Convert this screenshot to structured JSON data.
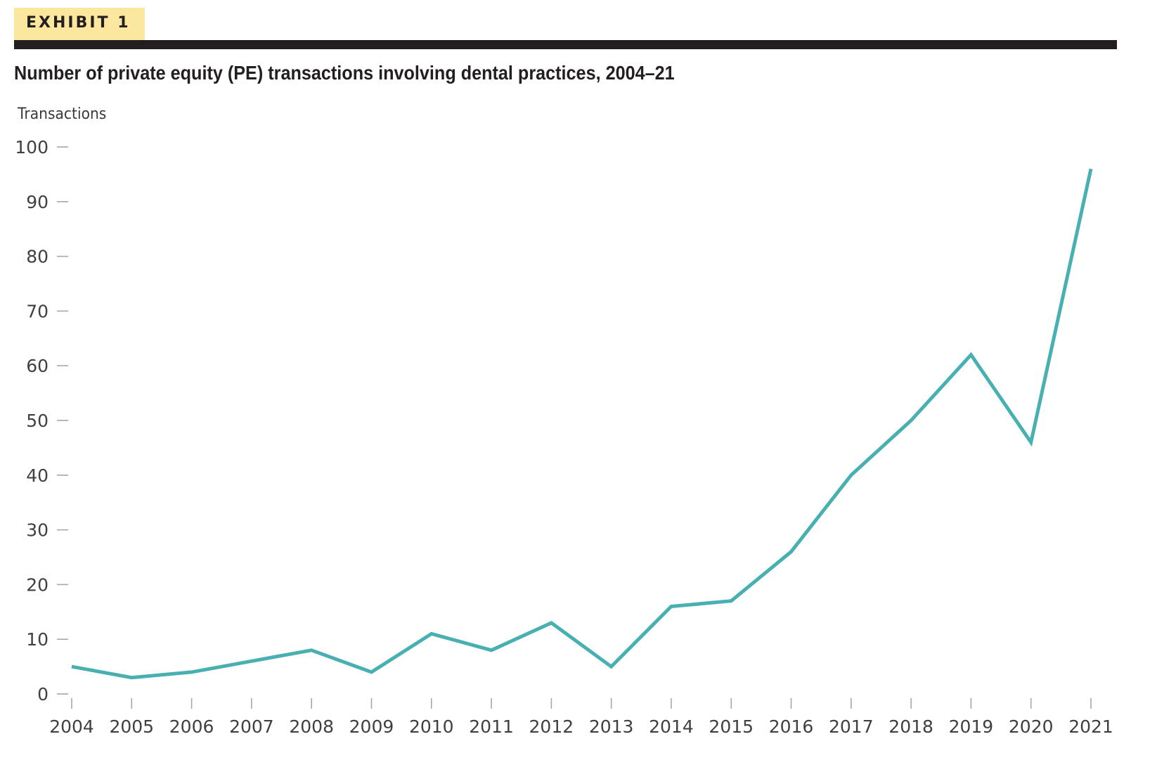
{
  "header": {
    "exhibit_label": "EXHIBIT 1"
  },
  "chart_data": {
    "type": "line",
    "title": "Number of private equity (PE) transactions involving dental practices, 2004–21",
    "xlabel": "",
    "ylabel": "Transactions",
    "categories": [
      "2004",
      "2005",
      "2006",
      "2007",
      "2008",
      "2009",
      "2010",
      "2011",
      "2012",
      "2013",
      "2014",
      "2015",
      "2016",
      "2017",
      "2018",
      "2019",
      "2020",
      "2021"
    ],
    "series": [
      {
        "name": "PE transactions",
        "values": [
          5,
          3,
          4,
          6,
          8,
          4,
          11,
          8,
          13,
          5,
          16,
          17,
          26,
          40,
          50,
          62,
          46,
          96
        ]
      }
    ],
    "ylim": [
      0,
      100
    ],
    "yticks": [
      "0",
      "10",
      "20",
      "30",
      "40",
      "50",
      "60",
      "70",
      "80",
      "90",
      "100"
    ],
    "grid": false,
    "legend": "none",
    "colors": {
      "line": "#48b0b0",
      "axis_tick": "#a7a7a7",
      "badge": "#fce79e",
      "rule": "#231f20"
    }
  }
}
